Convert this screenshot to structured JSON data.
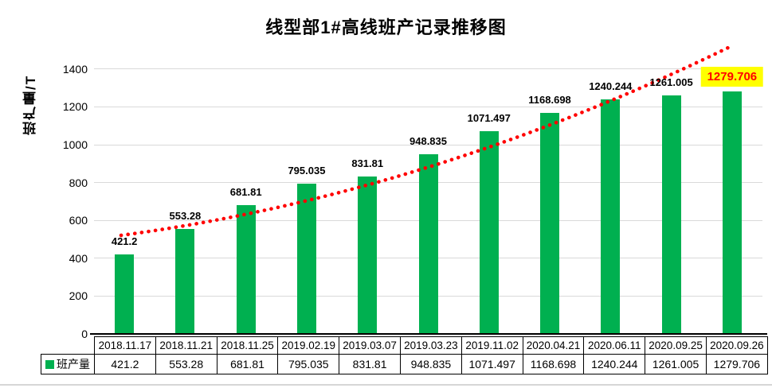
{
  "title": "线型部1#高线班产记录推移图",
  "y_axis": {
    "title": "班产量/T",
    "ticks": [
      0,
      200,
      400,
      600,
      800,
      1000,
      1200,
      1400
    ]
  },
  "legend": {
    "label": "班产量"
  },
  "colors": {
    "bar": "#00B050",
    "trendline": "#FF0000",
    "highlight_text": "#FF0000",
    "highlight_background": "#FFFF00",
    "gridline": "#D9D9D9",
    "axis": "#000000"
  },
  "chart_data": {
    "type": "bar",
    "title": "线型部1#高线班产记录推移图",
    "xlabel": "",
    "ylabel": "班产量/T",
    "ylim": [
      0,
      1500
    ],
    "grid": "horizontal",
    "legend_position": "bottom-left-table",
    "categories": [
      "2018.11.17",
      "2018.11.21",
      "2018.11.25",
      "2019.02.19",
      "2019.03.07",
      "2019.03.23",
      "2019.11.02",
      "2020.04.21",
      "2020.06.11",
      "2020.09.25",
      "2020.09.26"
    ],
    "series": [
      {
        "name": "班产量",
        "values": [
          421.2,
          553.28,
          681.81,
          795.035,
          831.81,
          948.835,
          1071.497,
          1168.698,
          1240.244,
          1261.005,
          1279.706
        ],
        "labels": [
          "421.2",
          "553.28",
          "681.81",
          "795.035",
          "831.81",
          "948.835",
          "1071.497",
          "1168.698",
          "1240.244",
          "1261.005",
          "1279.706"
        ]
      }
    ],
    "highlighted_label_index": 10,
    "trendline": {
      "shape": "curved-upward",
      "style": "dotted",
      "color": "#FF0000"
    }
  }
}
